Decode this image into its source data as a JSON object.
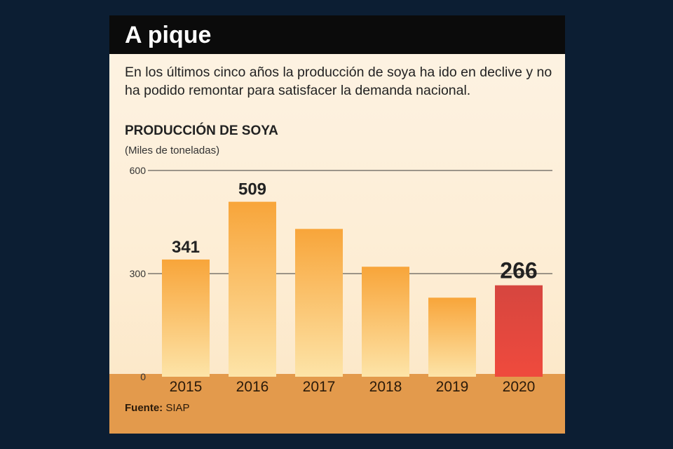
{
  "header": {
    "title": "A pique",
    "description": "En los últimos cinco años la producción de soya ha ido en declive y no ha podido remontar para satisfacer la demanda nacional."
  },
  "footer": {
    "source_label": "Fuente:",
    "source_value": "SIAP"
  },
  "colors": {
    "background": "#0c1e33",
    "bar_top": "#f8a53a",
    "bar_bottom": "#fde4a8",
    "highlight_top": "#d6463f",
    "highlight_bottom": "#ef4a3d",
    "footer_band": "#e39a4c"
  },
  "chart_data": {
    "type": "bar",
    "title": "PRODUCCIÓN DE SOYA",
    "subtitle": "(Miles de toneladas)",
    "categories": [
      "2015",
      "2016",
      "2017",
      "2018",
      "2019",
      "2020"
    ],
    "values": [
      341,
      509,
      430,
      320,
      230,
      266
    ],
    "data_labels": [
      "341",
      "509",
      "",
      "",
      "",
      "266"
    ],
    "highlight": "2020",
    "ylim": [
      0,
      600
    ],
    "yticks": [
      "0",
      "300",
      "600"
    ],
    "grid": true
  }
}
